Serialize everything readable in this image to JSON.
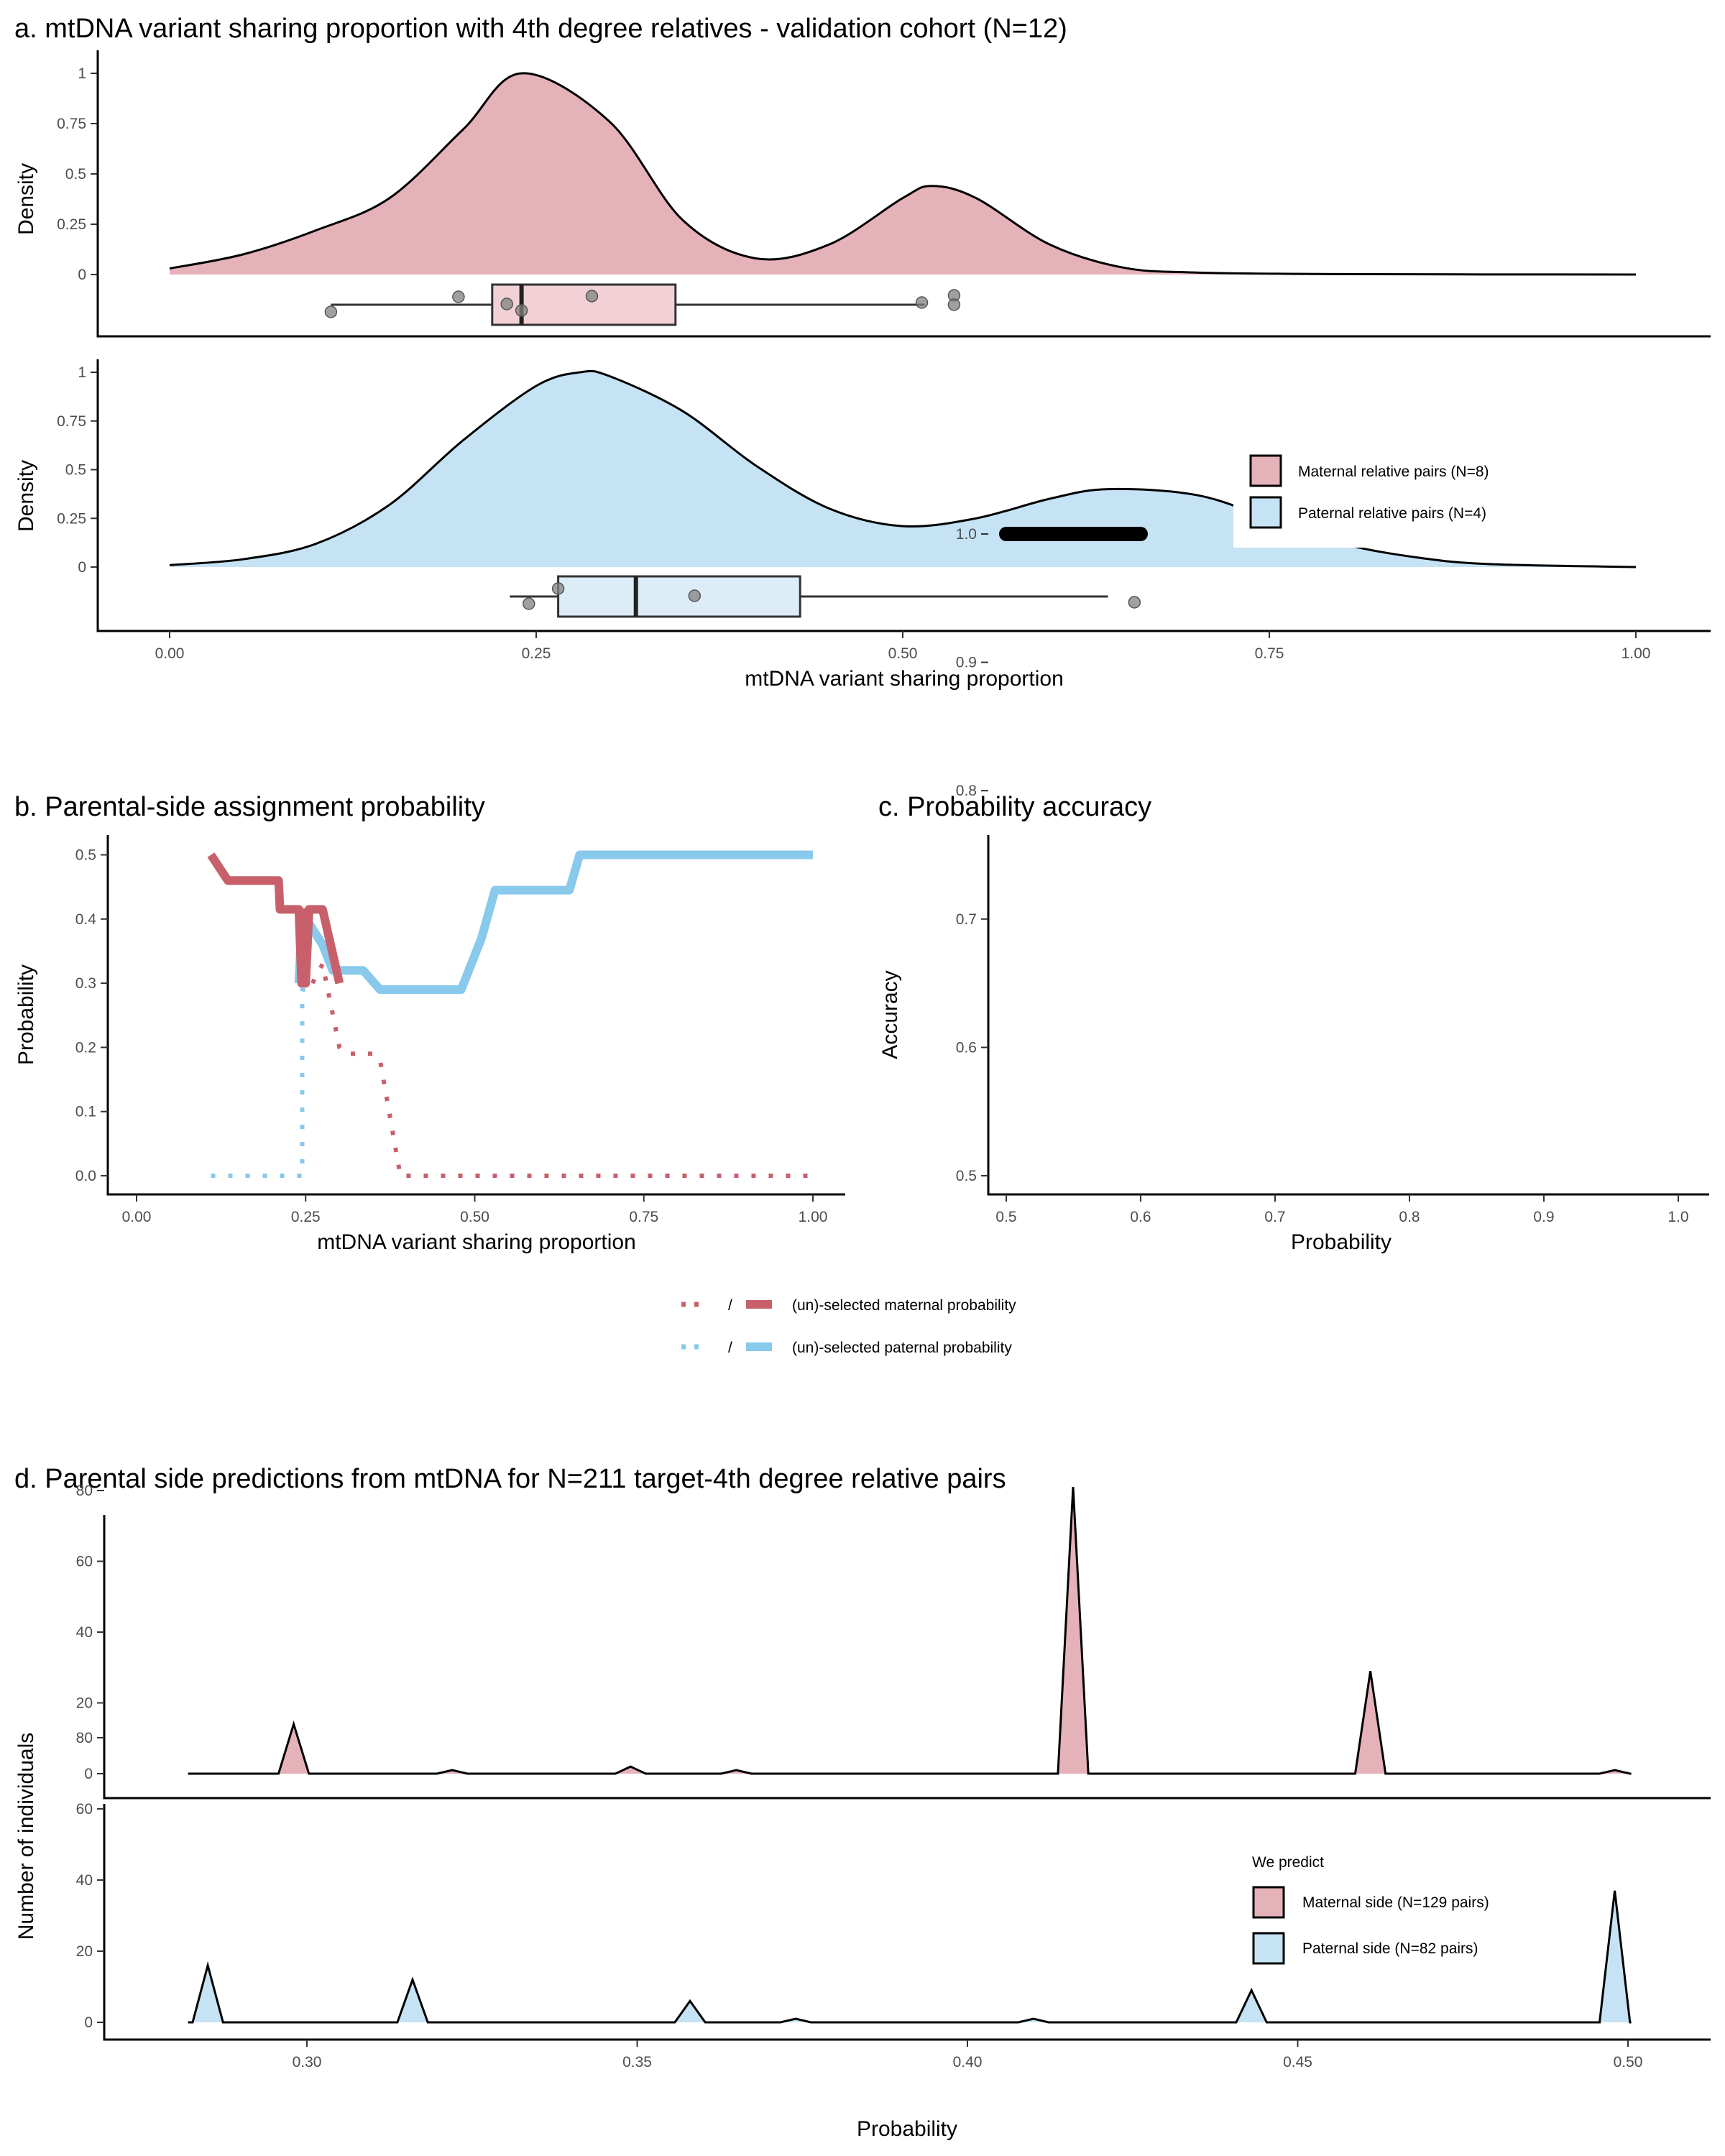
{
  "colors": {
    "maternal_fill": "#e5b2ba",
    "paternal_fill": "#c5e3f4",
    "maternal_line": "#c8606c",
    "paternal_line": "#88c9ec",
    "box_maternal": "#f2d1d6",
    "box_paternal": "#dcedf8",
    "point": "#808080"
  },
  "chart_data": [
    {
      "id": "a",
      "type": "area",
      "title": "a. mtDNA variant sharing proportion with 4th degree relatives - validation cohort (N=12)",
      "xlabel": "mtDNA variant sharing proportion",
      "ylabel": "Density",
      "xlim": [
        0,
        1
      ],
      "xticks": [
        "0.00",
        "0.25",
        "0.50",
        "0.75",
        "1.00"
      ],
      "yticks": [
        "0",
        "0.25",
        "0.5",
        "0.75",
        "1"
      ],
      "legend": {
        "position": "right",
        "entries": [
          "Maternal relative pairs (N=8)",
          "Paternal relative pairs (N=4)"
        ]
      },
      "series": [
        {
          "name": "Maternal relative pairs (N=8)",
          "density": {
            "x": [
              0.0,
              0.05,
              0.1,
              0.15,
              0.2,
              0.24,
              0.3,
              0.35,
              0.4,
              0.45,
              0.5,
              0.52,
              0.55,
              0.6,
              0.65,
              0.7,
              0.8,
              1.0
            ],
            "y": [
              0.03,
              0.1,
              0.22,
              0.38,
              0.72,
              1.0,
              0.76,
              0.27,
              0.08,
              0.15,
              0.38,
              0.44,
              0.38,
              0.15,
              0.035,
              0.01,
              0.002,
              0.0
            ]
          },
          "box": {
            "min": 0.11,
            "q1": 0.22,
            "median": 0.24,
            "q3": 0.345,
            "max": 0.515
          },
          "points": [
            0.11,
            0.197,
            0.23,
            0.24,
            0.288,
            0.513,
            0.535,
            0.535
          ]
        },
        {
          "name": "Paternal relative pairs (N=4)",
          "density": {
            "x": [
              0.0,
              0.05,
              0.1,
              0.15,
              0.2,
              0.25,
              0.28,
              0.3,
              0.35,
              0.4,
              0.45,
              0.5,
              0.55,
              0.6,
              0.64,
              0.7,
              0.75,
              0.8,
              0.85,
              0.9,
              1.0
            ],
            "y": [
              0.01,
              0.04,
              0.12,
              0.32,
              0.65,
              0.93,
              1.0,
              0.98,
              0.8,
              0.52,
              0.3,
              0.21,
              0.25,
              0.35,
              0.4,
              0.37,
              0.25,
              0.12,
              0.05,
              0.015,
              0.0
            ]
          },
          "box": {
            "min": 0.232,
            "q1": 0.265,
            "median": 0.318,
            "q3": 0.43,
            "max": 0.64
          },
          "points": [
            0.245,
            0.265,
            0.358,
            0.658
          ]
        }
      ]
    },
    {
      "id": "b",
      "type": "line",
      "title": "b. Parental-side assignment probability",
      "xlabel": "mtDNA variant sharing proportion",
      "ylabel": "Probability",
      "xlim": [
        0,
        1
      ],
      "ylim": [
        0,
        0.5
      ],
      "xticks": [
        "0.00",
        "0.25",
        "0.50",
        "0.75",
        "1.00"
      ],
      "yticks": [
        "0.0",
        "0.1",
        "0.2",
        "0.3",
        "0.4",
        "0.5"
      ],
      "legend": {
        "position": "bottom",
        "separator": "/",
        "entries": [
          "(un)-selected maternal probability",
          "(un)-selected paternal probability"
        ]
      },
      "series": [
        {
          "name": "selected maternal",
          "style": "solid",
          "color": "maternal_line",
          "x": [
            0.11,
            0.135,
            0.21,
            0.212,
            0.24,
            0.244,
            0.247,
            0.25,
            0.255,
            0.26,
            0.275,
            0.3
          ],
          "y": [
            0.5,
            0.46,
            0.46,
            0.415,
            0.415,
            0.3,
            0.41,
            0.3,
            0.415,
            0.415,
            0.415,
            0.3
          ]
        },
        {
          "name": "unselected maternal",
          "style": "dotted",
          "color": "maternal_line",
          "x": [
            0.26,
            0.275,
            0.3,
            0.31,
            0.35,
            0.36,
            0.38,
            0.39,
            1.0
          ],
          "y": [
            0.3,
            0.33,
            0.2,
            0.19,
            0.19,
            0.18,
            0.06,
            0.0,
            0.0
          ]
        },
        {
          "name": "selected paternal",
          "style": "solid",
          "color": "paternal_line",
          "x": [
            0.24,
            0.245,
            0.275,
            0.29,
            0.335,
            0.36,
            0.48,
            0.51,
            0.53,
            0.64,
            0.655,
            1.0
          ],
          "y": [
            0.3,
            0.41,
            0.36,
            0.32,
            0.32,
            0.29,
            0.29,
            0.37,
            0.445,
            0.445,
            0.5,
            0.5
          ]
        },
        {
          "name": "unselected paternal",
          "style": "dotted",
          "color": "paternal_line",
          "x": [
            0.11,
            0.245,
            0.245,
            0.25
          ],
          "y": [
            0.0,
            0.0,
            0.29,
            0.29
          ]
        }
      ]
    },
    {
      "id": "c",
      "type": "line",
      "title": "c. Probability accuracy",
      "xlabel": "Probability",
      "ylabel": "Accuracy",
      "xlim": [
        0.5,
        1.0
      ],
      "ylim": [
        0.5,
        1.0
      ],
      "xticks": [
        "0.5",
        "0.6",
        "0.7",
        "0.8",
        "0.9",
        "1.0"
      ],
      "yticks": [
        "0.5",
        "0.6",
        "0.7",
        "0.8",
        "0.9",
        "1.0"
      ],
      "series": [
        {
          "name": "accuracy",
          "x": [
            0.5,
            0.6
          ],
          "y": [
            1.0,
            1.0
          ]
        }
      ]
    },
    {
      "id": "d",
      "type": "area",
      "title": "d. Parental side predictions from mtDNA for N=211 target-4th degree relative pairs",
      "xlabel": "Probability",
      "ylabel": "Number of individuals",
      "xlim": [
        0.28,
        0.5
      ],
      "ylim": [
        0,
        80
      ],
      "xticks": [
        "0.30",
        "0.35",
        "0.40",
        "0.45",
        "0.50"
      ],
      "yticks": [
        "0",
        "20",
        "40",
        "60",
        "80"
      ],
      "legend": {
        "position": "right",
        "title": "We predict",
        "entries": [
          "Maternal side (N=129 pairs)",
          "Paternal side (N=82 pairs)"
        ]
      },
      "series": [
        {
          "name": "Maternal side (N=129 pairs)",
          "peaks": [
            {
              "x": 0.298,
              "y": 14
            },
            {
              "x": 0.322,
              "y": 1
            },
            {
              "x": 0.349,
              "y": 2
            },
            {
              "x": 0.365,
              "y": 1
            },
            {
              "x": 0.416,
              "y": 81
            },
            {
              "x": 0.461,
              "y": 29
            },
            {
              "x": 0.498,
              "y": 1
            }
          ]
        },
        {
          "name": "Paternal side (N=82 pairs)",
          "peaks": [
            {
              "x": 0.285,
              "y": 16
            },
            {
              "x": 0.316,
              "y": 12
            },
            {
              "x": 0.358,
              "y": 6
            },
            {
              "x": 0.374,
              "y": 1
            },
            {
              "x": 0.41,
              "y": 1
            },
            {
              "x": 0.443,
              "y": 9
            },
            {
              "x": 0.498,
              "y": 37
            }
          ]
        }
      ]
    }
  ]
}
